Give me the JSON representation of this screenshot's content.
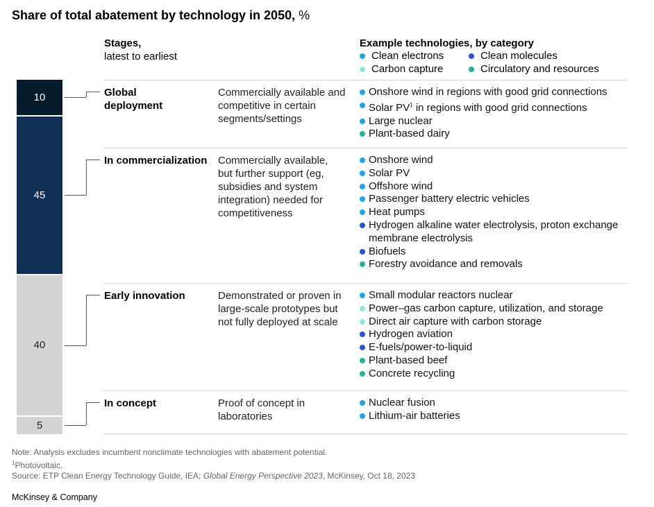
{
  "title": "Share of total abatement by technology in 2050,",
  "title_unit": "%",
  "header": {
    "stages_line1": "Stages,",
    "stages_line2": "latest to earliest",
    "tech_title": "Example technologies, by category"
  },
  "legend": [
    {
      "label": "Clean electrons",
      "color": "#1ba7e6"
    },
    {
      "label": "Clean molecules",
      "color": "#2251e0"
    },
    {
      "label": "Carbon capture",
      "color": "#8ee8dc"
    },
    {
      "label": "Circulatory and resources",
      "color": "#20b39a"
    }
  ],
  "chart_data": {
    "type": "bar",
    "stacked": true,
    "orientation": "vertical",
    "categories": [
      "Global deployment",
      "In commercialization",
      "Early innovation",
      "In concept"
    ],
    "values": [
      10,
      45,
      40,
      5
    ],
    "colors": [
      "#051c2c",
      "#0d3054",
      "#d4d4d4",
      "#d4d4d4"
    ],
    "label_colors": [
      "#ffffff",
      "#ffffff",
      "#222222",
      "#222222"
    ],
    "unit": "%"
  },
  "stages": [
    {
      "name_lines": [
        "Global",
        "deployment"
      ],
      "description": [
        "Commercially available and",
        "competitive in certain",
        "segments/settings"
      ],
      "technologies": [
        {
          "text": "Onshore wind in regions with good grid connections",
          "category": 0
        },
        {
          "text": "Solar PV",
          "sup": "1",
          "text_after": " in regions with good grid connections",
          "category": 0
        },
        {
          "text": "Large nuclear",
          "category": 0
        },
        {
          "text": "Plant-based dairy",
          "category": 3
        }
      ]
    },
    {
      "name_lines": [
        "In commercialization"
      ],
      "description": [
        "Commercially available,",
        "but further support (eg,",
        "subsidies and system",
        "integration) needed for",
        "competitiveness"
      ],
      "technologies": [
        {
          "text": "Onshore wind",
          "category": 0
        },
        {
          "text": "Solar PV",
          "category": 0
        },
        {
          "text": "Offshore wind",
          "category": 0
        },
        {
          "text": "Passenger battery electric vehicles",
          "category": 0
        },
        {
          "text": "Heat pumps",
          "category": 0
        },
        {
          "text": "Hydrogen alkaline water electrolysis, proton exchange",
          "cont": "membrane electrolysis",
          "category": 1
        },
        {
          "text": "Biofuels",
          "category": 1
        },
        {
          "text": "Forestry avoidance and removals",
          "category": 3
        }
      ]
    },
    {
      "name_lines": [
        "Early innovation"
      ],
      "description": [
        "Demonstrated or proven in",
        "large-scale prototypes but",
        "not fully deployed at scale"
      ],
      "technologies": [
        {
          "text": "Small modular reactors nuclear",
          "category": 0
        },
        {
          "text": "Power–gas carbon capture, utilization, and storage",
          "category": 2
        },
        {
          "text": "Direct air capture with carbon storage",
          "category": 2
        },
        {
          "text": "Hydrogen aviation",
          "category": 1
        },
        {
          "text": "E-fuels/power-to-liquid",
          "category": 1
        },
        {
          "text": "Plant-based beef",
          "category": 3
        },
        {
          "text": "Concrete recycling",
          "category": 3
        }
      ]
    },
    {
      "name_lines": [
        "In concept"
      ],
      "description": [
        "Proof of concept in",
        "laboratories"
      ],
      "technologies": [
        {
          "text": "Nuclear fusion",
          "category": 0
        },
        {
          "text": "Lithium-air batteries",
          "category": 0
        }
      ]
    }
  ],
  "footnotes": {
    "note": "Note: Analysis excludes incumbent nonclimate technologies with abatement potential.",
    "fn_marker": "1",
    "fn_text": "Photovoltaic.",
    "source_prefix": "Source: ETP Clean Energy Technology Guide, IEA; ",
    "source_italic": "Global Energy Perspective 2023",
    "source_suffix": ", McKinsey, Oct 18, 2023"
  },
  "brand": "McKinsey & Company"
}
